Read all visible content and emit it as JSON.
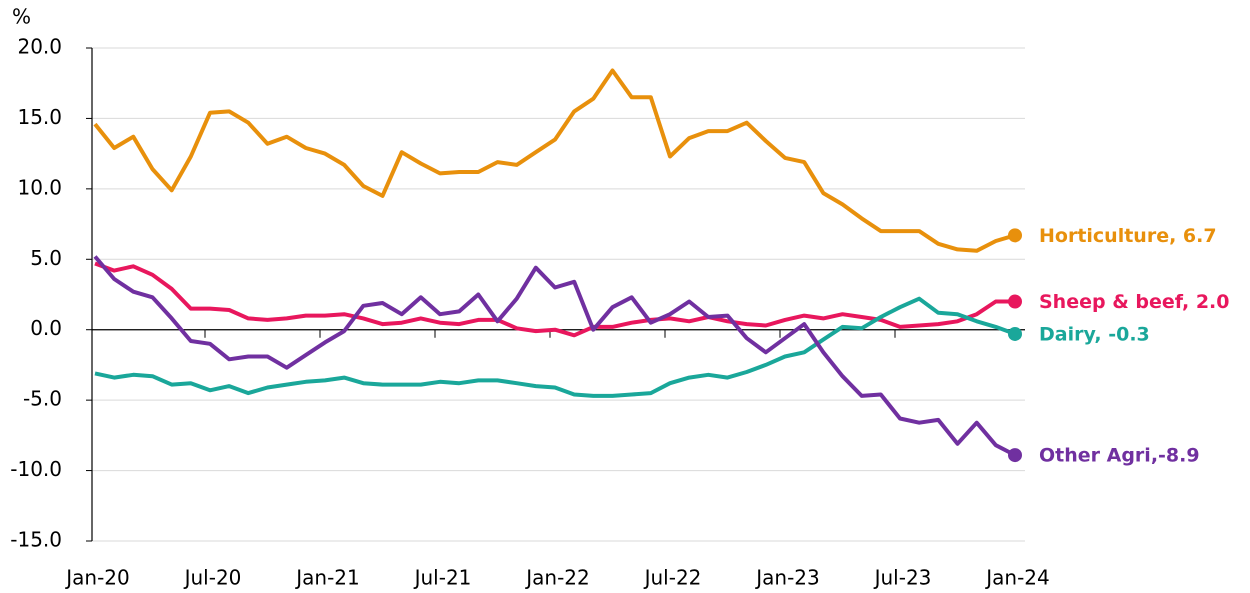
{
  "chart_data": {
    "type": "line",
    "y_label": "%",
    "categories": [
      "Jan-20",
      null,
      null,
      null,
      null,
      null,
      "Jul-20",
      null,
      null,
      null,
      null,
      null,
      "Jan-21",
      null,
      null,
      null,
      null,
      null,
      "Jul-21",
      null,
      null,
      null,
      null,
      null,
      "Jan-22",
      null,
      null,
      null,
      null,
      null,
      "Jul-22",
      null,
      null,
      null,
      null,
      null,
      "Jan-23",
      null,
      null,
      null,
      null,
      null,
      "Jul-23",
      null,
      null,
      null,
      null,
      null,
      "Jan-24"
    ],
    "ylim": [
      -15,
      20
    ],
    "yticks": [
      {
        "value": -15,
        "label": "-15.0"
      },
      {
        "value": -10,
        "label": "-10.0"
      },
      {
        "value": -5,
        "label": "-5.0"
      },
      {
        "value": 0,
        "label": "0.0"
      },
      {
        "value": 5,
        "label": "5.0"
      },
      {
        "value": 10,
        "label": "10.0"
      },
      {
        "value": 15,
        "label": "15.0"
      },
      {
        "value": 20,
        "label": "20.0"
      }
    ],
    "grid": true,
    "series": [
      {
        "name": "Horticulture, 6.7",
        "color": "#e8900c",
        "values": [
          14.6,
          12.9,
          13.7,
          11.4,
          9.9,
          12.3,
          15.4,
          15.5,
          14.7,
          13.2,
          13.7,
          12.9,
          12.5,
          11.7,
          10.2,
          9.5,
          12.6,
          11.8,
          11.1,
          11.2,
          11.2,
          11.9,
          11.7,
          12.6,
          13.5,
          15.5,
          16.4,
          18.4,
          16.5,
          16.5,
          12.3,
          13.6,
          14.1,
          14.1,
          14.7,
          13.4,
          12.2,
          11.9,
          9.7,
          8.9,
          7.9,
          7.0,
          7.0,
          7.0,
          6.1,
          5.7,
          5.6,
          6.3,
          6.7
        ]
      },
      {
        "name": "Sheep & beef, 2.0",
        "color": "#e8175d",
        "values": [
          4.7,
          4.2,
          4.5,
          3.9,
          2.9,
          1.5,
          1.5,
          1.4,
          0.8,
          0.7,
          0.8,
          1.0,
          1.0,
          1.1,
          0.8,
          0.4,
          0.5,
          0.8,
          0.5,
          0.4,
          0.7,
          0.7,
          0.1,
          -0.1,
          0.0,
          -0.4,
          0.2,
          0.2,
          0.5,
          0.7,
          0.8,
          0.6,
          0.9,
          0.6,
          0.4,
          0.3,
          0.7,
          1.0,
          0.8,
          1.1,
          0.9,
          0.7,
          0.2,
          0.3,
          0.4,
          0.6,
          1.1,
          2.0,
          2.0
        ]
      },
      {
        "name": "Dairy, -0.3",
        "color": "#1aa79a",
        "values": [
          -3.1,
          -3.4,
          -3.2,
          -3.3,
          -3.9,
          -3.8,
          -4.3,
          -4.0,
          -4.5,
          -4.1,
          -3.9,
          -3.7,
          -3.6,
          -3.4,
          -3.8,
          -3.9,
          -3.9,
          -3.9,
          -3.7,
          -3.8,
          -3.6,
          -3.6,
          -3.8,
          -4.0,
          -4.1,
          -4.6,
          -4.7,
          -4.7,
          -4.6,
          -4.5,
          -3.8,
          -3.4,
          -3.2,
          -3.4,
          -3.0,
          -2.5,
          -1.9,
          -1.6,
          -0.7,
          0.2,
          0.1,
          0.9,
          1.6,
          2.2,
          1.2,
          1.1,
          0.6,
          0.2,
          -0.3
        ]
      },
      {
        "name": "Other Agri,-8.9",
        "color": "#7030a0",
        "values": [
          5.2,
          3.6,
          2.7,
          2.3,
          0.8,
          -0.8,
          -1.0,
          -2.1,
          -1.9,
          -1.9,
          -2.7,
          -1.8,
          -0.9,
          -0.1,
          1.7,
          1.9,
          1.1,
          2.3,
          1.1,
          1.3,
          2.5,
          0.6,
          2.2,
          4.4,
          3.0,
          3.4,
          0.0,
          1.6,
          2.3,
          0.5,
          1.1,
          2.0,
          0.9,
          1.0,
          -0.6,
          -1.6,
          -0.6,
          0.4,
          -1.6,
          -3.3,
          -4.7,
          -4.6,
          -6.3,
          -6.6,
          -6.4,
          -8.1,
          -6.6,
          -8.2,
          -8.9
        ]
      }
    ]
  }
}
